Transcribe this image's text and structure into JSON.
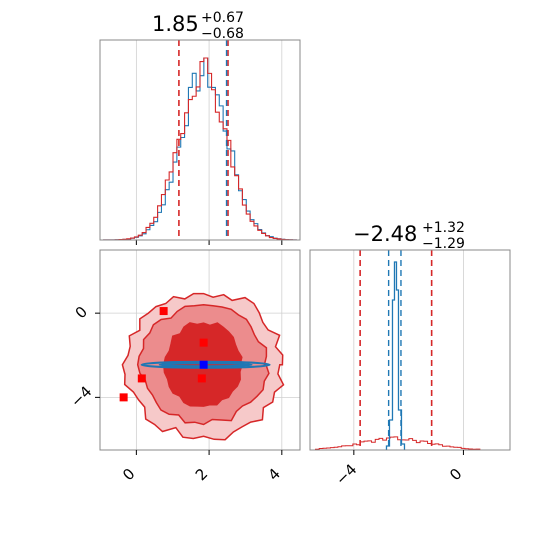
{
  "chart_data": {
    "type": "corner",
    "parameters": [
      "",
      ""
    ],
    "grid": true,
    "colors": {
      "primary": "#d62728",
      "secondary": "#1f77b4",
      "marker_red": "#ff0000",
      "marker_blue": "#0000ff"
    },
    "titles": [
      {
        "main": "1.85",
        "sup": "+0.67",
        "sub": "−0.68"
      },
      {
        "main": "−2.48",
        "sup": "+1.32",
        "sub": "−1.29"
      }
    ],
    "x_ticks": [
      {
        "value": 0,
        "label": "0"
      },
      {
        "value": 2,
        "label": "2"
      },
      {
        "value": 4,
        "label": "4"
      }
    ],
    "y_ticks": [
      {
        "value": 0,
        "label": "0"
      },
      {
        "value": -4,
        "label": "−4"
      }
    ],
    "x2_ticks": [
      {
        "value": -4,
        "label": "−4"
      },
      {
        "value": 0,
        "label": "0"
      }
    ],
    "xlim": [
      -1.0,
      4.5
    ],
    "ylim": [
      -6.5,
      3.0
    ],
    "hist1": {
      "median": 1.85,
      "quantiles": [
        1.17,
        2.52
      ],
      "secondary_quantiles": [
        2.48,
        2.52
      ],
      "bins_x": [
        -0.8,
        1.85,
        0.55
      ],
      "bins_mean": 1.85,
      "bins_sd": 0.65
    },
    "hist2": {
      "quantiles": [
        -3.77,
        -1.16
      ],
      "secondary_quantiles": [
        -2.73,
        -2.28
      ],
      "secondary_median": -2.48
    },
    "markers_red": [
      {
        "x": 0.75,
        "y": 0.1
      },
      {
        "x": 1.85,
        "y": -1.4
      },
      {
        "x": 0.15,
        "y": -3.1
      },
      {
        "x": 1.8,
        "y": -3.1
      },
      {
        "x": -0.35,
        "y": -4.0
      }
    ],
    "marker_blue": {
      "x": 1.85,
      "y": -2.45
    }
  }
}
